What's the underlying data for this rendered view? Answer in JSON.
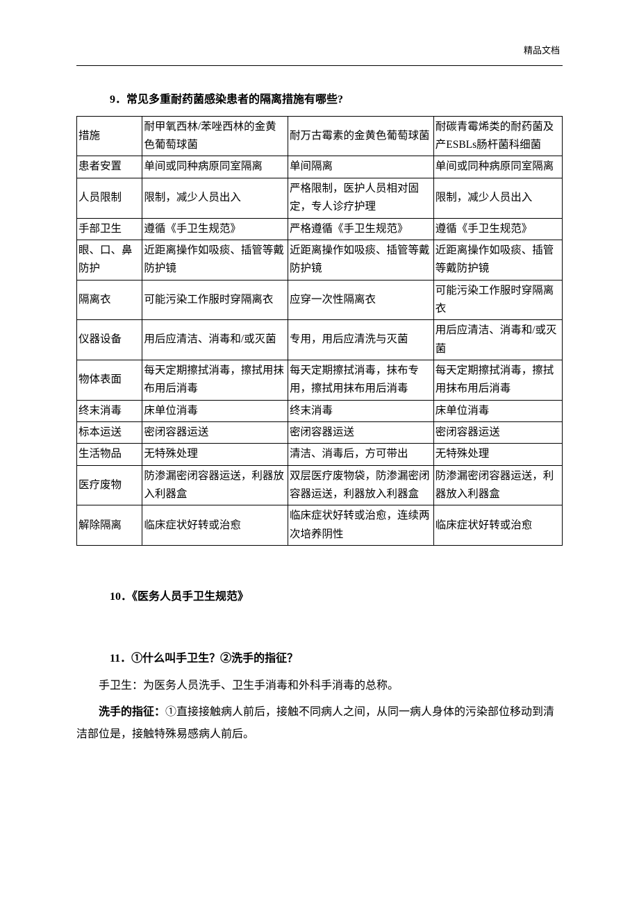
{
  "header_mark": "精品文档",
  "footer_dot": ".",
  "heading_9": "9．常见多重耐药菌感染患者的隔离措施有哪些?",
  "table": {
    "columns": [
      "措施",
      "耐甲氧西林/苯唑西林的金黄色葡萄球菌",
      "耐万古霉素的金黄色葡萄球菌",
      "耐碳青霉烯类的耐药菌及产ESBLs肠杆菌科细菌"
    ],
    "rows": [
      [
        "患者安置",
        "单间或同种病原同室隔离",
        "单间隔离",
        "单间或同种病原同室隔离"
      ],
      [
        "人员限制",
        "限制，减少人员出入",
        "严格限制，医护人员相对固定，专人诊疗护理",
        "限制，减少人员出入"
      ],
      [
        "手部卫生",
        "遵循《手卫生规范》",
        "严格遵循《手卫生规范》",
        "遵循《手卫生规范》"
      ],
      [
        "眼、口、鼻防护",
        "近距离操作如吸痰、插管等戴防护镜",
        "近距离操作如吸痰、插管等戴防护镜",
        "近距离操作如吸痰、插管等戴防护镜"
      ],
      [
        "隔离衣",
        "可能污染工作服时穿隔离衣",
        "应穿一次性隔离衣",
        "可能污染工作服时穿隔离衣"
      ],
      [
        "仪器设备",
        "用后应清洁、消毒和/或灭菌",
        "专用，用后应清洗与灭菌",
        "用后应清洁、消毒和/或灭菌"
      ],
      [
        "物体表面",
        "每天定期擦拭消毒，擦拭用抹布用后消毒",
        "每天定期擦拭消毒，抹布专用，擦拭用抹布用后消毒",
        "每天定期擦拭消毒，擦拭用抹布用后消毒"
      ],
      [
        "终末消毒",
        "床单位消毒",
        "终末消毒",
        "床单位消毒"
      ],
      [
        "标本运送",
        "密闭容器运送",
        "密闭容器运送",
        "密闭容器运送"
      ],
      [
        "生活物品",
        "无特殊处理",
        "清洁、消毒后，方可带出",
        "无特殊处理"
      ],
      [
        "医疗废物",
        "防渗漏密闭容器运送，利器放入利器盒",
        "双层医疗废物袋，防渗漏密闭容器运送，利器放入利器盒",
        "防渗漏密闭容器运送，利器放入利器盒"
      ],
      [
        "解除隔离",
        "临床症状好转或治愈",
        "临床症状好转或治愈，连续两次培养阴性",
        "临床症状好转或治愈"
      ]
    ]
  },
  "heading_10": "10．《医务人员手卫生规范》",
  "heading_11": "11．①什么叫手卫生？②洗手的指征？",
  "para_def": "手卫生：为医务人员洗手、卫生手消毒和外科手消毒的总称。",
  "para_ind_bold": "洗手的指征：",
  "para_ind_rest": "①直接接触病人前后，接触不同病人之间，从同一病人身体的污染部位移动到清洁部位是，接触特殊易感病人前后。"
}
